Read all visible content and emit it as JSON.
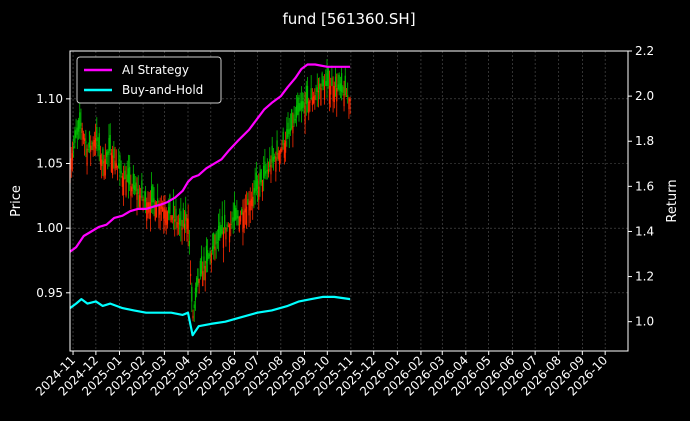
{
  "chart_data": {
    "type": "line",
    "title": "fund [561360.SH]",
    "left_axis": {
      "label": "Price",
      "ylim": [
        0.905,
        1.137
      ],
      "ticks": [
        0.95,
        1.0,
        1.05,
        1.1
      ],
      "tick_labels": [
        "0.95",
        "1.00",
        "1.05",
        "1.10"
      ]
    },
    "right_axis": {
      "label": "Return",
      "ylim": [
        0.87,
        2.2
      ],
      "ticks": [
        1.0,
        1.2,
        1.4,
        1.6,
        1.8,
        2.0,
        2.2
      ],
      "tick_labels": [
        "1.0",
        "1.2",
        "1.4",
        "1.6",
        "1.8",
        "2.0",
        "2.2"
      ]
    },
    "x_axis": {
      "start": "2024-10-28",
      "end": "2026-10-31",
      "tick_labels": [
        "2024-11",
        "2024-12",
        "2025-01",
        "2025-02",
        "2025-03",
        "2025-04",
        "2025-05",
        "2025-06",
        "2025-07",
        "2025-08",
        "2025-09",
        "2025-10",
        "2025-11",
        "2025-12",
        "2026-01",
        "2026-02",
        "2026-03",
        "2026-04",
        "2026-05",
        "2026-06",
        "2026-07",
        "2026-08",
        "2026-09",
        "2026-10"
      ],
      "tick_dates": [
        "2024-11-01",
        "2024-12-01",
        "2025-01-01",
        "2025-02-01",
        "2025-03-01",
        "2025-04-01",
        "2025-05-01",
        "2025-06-01",
        "2025-07-01",
        "2025-08-01",
        "2025-09-01",
        "2025-10-01",
        "2025-11-01",
        "2025-12-01",
        "2026-01-01",
        "2026-02-01",
        "2026-03-01",
        "2026-04-01",
        "2026-05-01",
        "2026-06-01",
        "2026-07-01",
        "2026-08-01",
        "2026-09-01",
        "2026-10-01"
      ]
    },
    "grid": true,
    "legend_position": "top-left",
    "series": [
      {
        "name": "AI Strategy",
        "axis": "right",
        "color": "#ff00ff",
        "points": [
          [
            "2024-10-28",
            1.31
          ],
          [
            "2024-11-05",
            1.33
          ],
          [
            "2024-11-15",
            1.38
          ],
          [
            "2024-11-25",
            1.4
          ],
          [
            "2024-12-05",
            1.42
          ],
          [
            "2024-12-15",
            1.43
          ],
          [
            "2024-12-25",
            1.46
          ],
          [
            "2025-01-05",
            1.47
          ],
          [
            "2025-01-15",
            1.49
          ],
          [
            "2025-01-25",
            1.5
          ],
          [
            "2025-02-05",
            1.5
          ],
          [
            "2025-02-15",
            1.51
          ],
          [
            "2025-02-25",
            1.52
          ],
          [
            "2025-03-05",
            1.53
          ],
          [
            "2025-03-15",
            1.55
          ],
          [
            "2025-03-25",
            1.58
          ],
          [
            "2025-04-01",
            1.62
          ],
          [
            "2025-04-07",
            1.64
          ],
          [
            "2025-04-15",
            1.65
          ],
          [
            "2025-04-25",
            1.68
          ],
          [
            "2025-05-05",
            1.7
          ],
          [
            "2025-05-15",
            1.72
          ],
          [
            "2025-05-25",
            1.76
          ],
          [
            "2025-06-05",
            1.8
          ],
          [
            "2025-06-20",
            1.85
          ],
          [
            "2025-07-01",
            1.9
          ],
          [
            "2025-07-10",
            1.94
          ],
          [
            "2025-07-20",
            1.97
          ],
          [
            "2025-08-01",
            2.0
          ],
          [
            "2025-08-10",
            2.04
          ],
          [
            "2025-08-20",
            2.08
          ],
          [
            "2025-08-28",
            2.12
          ],
          [
            "2025-09-05",
            2.14
          ],
          [
            "2025-09-15",
            2.14
          ],
          [
            "2025-10-01",
            2.13
          ],
          [
            "2025-10-15",
            2.13
          ],
          [
            "2025-10-31",
            2.13
          ]
        ]
      },
      {
        "name": "Buy-and-Hold",
        "axis": "right",
        "color": "#00ffff",
        "points": [
          [
            "2024-10-28",
            1.06
          ],
          [
            "2024-11-05",
            1.08
          ],
          [
            "2024-11-12",
            1.1
          ],
          [
            "2024-11-20",
            1.08
          ],
          [
            "2024-12-01",
            1.09
          ],
          [
            "2024-12-10",
            1.07
          ],
          [
            "2024-12-20",
            1.08
          ],
          [
            "2025-01-05",
            1.06
          ],
          [
            "2025-01-20",
            1.05
          ],
          [
            "2025-02-05",
            1.04
          ],
          [
            "2025-02-20",
            1.04
          ],
          [
            "2025-03-10",
            1.04
          ],
          [
            "2025-03-25",
            1.03
          ],
          [
            "2025-04-01",
            1.04
          ],
          [
            "2025-04-07",
            0.94
          ],
          [
            "2025-04-15",
            0.98
          ],
          [
            "2025-05-01",
            0.99
          ],
          [
            "2025-05-20",
            1.0
          ],
          [
            "2025-06-10",
            1.02
          ],
          [
            "2025-07-01",
            1.04
          ],
          [
            "2025-07-20",
            1.05
          ],
          [
            "2025-08-10",
            1.07
          ],
          [
            "2025-08-25",
            1.09
          ],
          [
            "2025-09-10",
            1.1
          ],
          [
            "2025-09-25",
            1.11
          ],
          [
            "2025-10-10",
            1.11
          ],
          [
            "2025-10-31",
            1.1
          ]
        ]
      },
      {
        "name": "",
        "axis": "left",
        "color": "#ff2a00",
        "points": [
          [
            "2024-10-28",
            1.05
          ],
          [
            "2024-11-05",
            1.07
          ],
          [
            "2024-11-12",
            1.08
          ],
          [
            "2024-11-20",
            1.06
          ],
          [
            "2024-12-01",
            1.07
          ],
          [
            "2024-12-10",
            1.05
          ],
          [
            "2024-12-20",
            1.06
          ],
          [
            "2025-01-05",
            1.04
          ],
          [
            "2025-01-20",
            1.03
          ],
          [
            "2025-02-05",
            1.02
          ],
          [
            "2025-02-20",
            1.02
          ],
          [
            "2025-03-10",
            1.01
          ],
          [
            "2025-03-25",
            1.0
          ],
          [
            "2025-04-01",
            1.01
          ],
          [
            "2025-04-07",
            0.93
          ],
          [
            "2025-04-15",
            0.96
          ],
          [
            "2025-05-01",
            0.98
          ],
          [
            "2025-05-20",
            1.0
          ],
          [
            "2025-06-10",
            1.01
          ],
          [
            "2025-07-01",
            1.03
          ],
          [
            "2025-07-20",
            1.05
          ],
          [
            "2025-08-10",
            1.07
          ],
          [
            "2025-08-25",
            1.09
          ],
          [
            "2025-09-10",
            1.1
          ],
          [
            "2025-09-25",
            1.11
          ],
          [
            "2025-10-10",
            1.11
          ],
          [
            "2025-10-31",
            1.1
          ]
        ]
      }
    ],
    "legend": [
      {
        "label": "AI Strategy",
        "color": "#ff00ff"
      },
      {
        "label": "Buy-and-Hold",
        "color": "#00ffff"
      }
    ]
  }
}
